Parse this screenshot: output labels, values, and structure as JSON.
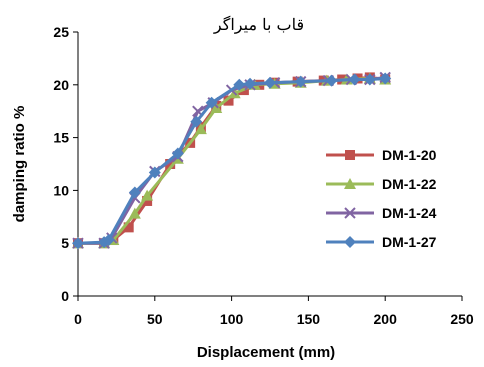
{
  "chart_data": {
    "type": "line",
    "title": "قاب با میراگر",
    "xlabel": "Displacement (mm)",
    "ylabel": "damping ratio %",
    "xlim": [
      0,
      250
    ],
    "ylim": [
      0,
      25
    ],
    "xticks": [
      0,
      50,
      100,
      150,
      200,
      250
    ],
    "yticks": [
      0,
      5,
      10,
      15,
      20,
      25
    ],
    "grid": false,
    "legend": "right",
    "series": [
      {
        "name": "DM-1-20",
        "color": "#c0504d",
        "marker": "square",
        "points": [
          [
            0,
            5.0
          ],
          [
            17,
            5.0
          ],
          [
            23,
            5.3
          ],
          [
            33,
            6.5
          ],
          [
            45,
            9.0
          ],
          [
            60,
            12.5
          ],
          [
            73,
            14.5
          ],
          [
            80,
            16.0
          ],
          [
            90,
            18.0
          ],
          [
            98,
            18.5
          ],
          [
            108,
            19.5
          ],
          [
            118,
            20.0
          ],
          [
            128,
            20.2
          ],
          [
            143,
            20.3
          ],
          [
            160,
            20.4
          ],
          [
            172,
            20.5
          ],
          [
            182,
            20.6
          ],
          [
            190,
            20.7
          ],
          [
            200,
            20.5
          ]
        ]
      },
      {
        "name": "DM-1-22",
        "color": "#9bbb59",
        "marker": "triangle",
        "points": [
          [
            0,
            5.0
          ],
          [
            17,
            5.0
          ],
          [
            23,
            5.3
          ],
          [
            37,
            7.8
          ],
          [
            45,
            9.5
          ],
          [
            65,
            13.0
          ],
          [
            80,
            15.8
          ],
          [
            90,
            17.8
          ],
          [
            102,
            19.2
          ],
          [
            115,
            20.0
          ],
          [
            128,
            20.1
          ],
          [
            145,
            20.2
          ],
          [
            162,
            20.4
          ],
          [
            175,
            20.5
          ],
          [
            190,
            20.6
          ],
          [
            200,
            20.5
          ]
        ]
      },
      {
        "name": "DM-1-24",
        "color": "#8064a2",
        "marker": "x",
        "points": [
          [
            0,
            5.0
          ],
          [
            17,
            5.0
          ],
          [
            22,
            5.5
          ],
          [
            37,
            9.3
          ],
          [
            50,
            11.8
          ],
          [
            65,
            13.2
          ],
          [
            78,
            17.5
          ],
          [
            88,
            18.3
          ],
          [
            100,
            19.5
          ],
          [
            112,
            20.0
          ],
          [
            128,
            20.2
          ],
          [
            145,
            20.3
          ],
          [
            163,
            20.4
          ],
          [
            178,
            20.5
          ],
          [
            190,
            20.5
          ],
          [
            200,
            20.7
          ]
        ]
      },
      {
        "name": "DM-1-27",
        "color": "#4f81bd",
        "marker": "diamond",
        "points": [
          [
            0,
            5.0
          ],
          [
            17,
            5.1
          ],
          [
            20,
            5.3
          ],
          [
            37,
            9.8
          ],
          [
            50,
            11.7
          ],
          [
            65,
            13.5
          ],
          [
            77,
            16.5
          ],
          [
            87,
            18.3
          ],
          [
            105,
            20.0
          ],
          [
            112,
            20.1
          ],
          [
            125,
            20.2
          ],
          [
            145,
            20.3
          ],
          [
            165,
            20.4
          ],
          [
            180,
            20.5
          ],
          [
            190,
            20.5
          ],
          [
            200,
            20.6
          ]
        ]
      }
    ]
  }
}
